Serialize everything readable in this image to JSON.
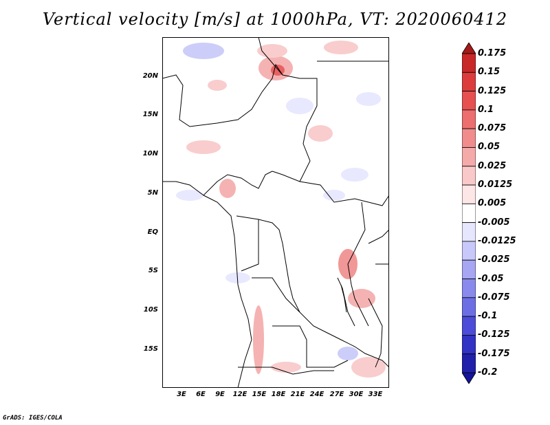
{
  "title": "Vertical velocity [m/s] at 1000hPa, VT: 2020060412",
  "footer": "GrADS: IGES/COLA",
  "map": {
    "lat_ticks": [
      "20N",
      "15N",
      "10N",
      "5N",
      "EQ",
      "5S",
      "10S",
      "15S"
    ],
    "lon_ticks": [
      "3E",
      "6E",
      "9E",
      "12E",
      "15E",
      "18E",
      "21E",
      "24E",
      "27E",
      "30E",
      "33E"
    ]
  },
  "colorbar": {
    "labels": [
      "0.175",
      "0.15",
      "0.125",
      "0.1",
      "0.075",
      "0.05",
      "0.025",
      "0.0125",
      "0.005",
      "-0.005",
      "-0.0125",
      "-0.025",
      "-0.05",
      "-0.075",
      "-0.1",
      "-0.125",
      "-0.175",
      "-0.2"
    ],
    "colors": [
      "#a51919",
      "#c82828",
      "#dc3c3c",
      "#e65050",
      "#ec6e6e",
      "#f08c8c",
      "#f5aaaa",
      "#f9c8c8",
      "#fde6e6",
      "#ffffff",
      "#e6e6ff",
      "#c8c8fa",
      "#a6a6f2",
      "#8a8aec",
      "#6e6ee4",
      "#4c4cd8",
      "#3232c4",
      "#2020aa",
      "#14149a"
    ]
  }
}
